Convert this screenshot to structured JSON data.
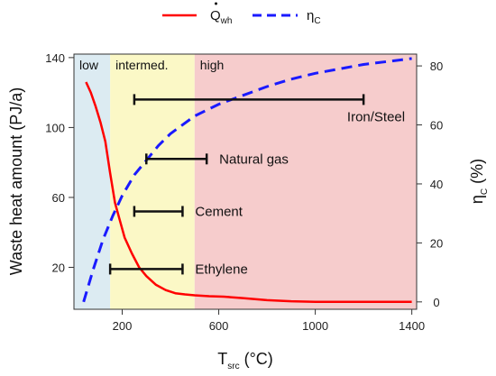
{
  "chart_data": {
    "type": "line",
    "legend": {
      "placement": "top",
      "entries": [
        {
          "main": "Q",
          "sub": "wh",
          "style": "solid",
          "color": "#ff0000"
        },
        {
          "main": "η",
          "sub": "C",
          "style": "dashed",
          "color": "#1a1aff"
        }
      ]
    },
    "x_axis": {
      "title_main": "T",
      "title_sub": "src",
      "title_rest": " (°C)",
      "ticks": [
        200,
        600,
        1000,
        1400
      ],
      "tick_labels": [
        "200",
        "600",
        "1000",
        "1400"
      ],
      "range": [
        0,
        1420
      ]
    },
    "y_left": {
      "title": "Waste heat amount (PJ/a)",
      "ticks": [
        20,
        60,
        100,
        140
      ],
      "tick_labels": [
        "20",
        "60",
        "100",
        "140"
      ],
      "range": [
        -4,
        142
      ]
    },
    "y_right": {
      "title_main": "η",
      "title_sub": "C",
      "title_rest": " (%)",
      "ticks": [
        0,
        20,
        40,
        60,
        80
      ],
      "tick_labels": [
        "0",
        "20",
        "40",
        "60",
        "80"
      ],
      "range": [
        -2.5,
        84
      ]
    },
    "regions": [
      {
        "label": "low",
        "from": 0,
        "to": 150,
        "color": "#dcebf2"
      },
      {
        "label": "intermed.",
        "from": 150,
        "to": 500,
        "color": "#fbf8c6"
      },
      {
        "label": "high",
        "from": 500,
        "to": 1420,
        "color": "#f6cccc"
      }
    ],
    "series": [
      {
        "name": "Qwh",
        "axis": "left",
        "color": "#ff0000",
        "dash": "solid",
        "x": [
          50,
          70,
          90,
          110,
          130,
          150,
          170,
          190,
          210,
          240,
          270,
          300,
          340,
          380,
          420,
          460,
          500,
          560,
          620,
          700,
          800,
          900,
          1000,
          1100,
          1200,
          1300,
          1400
        ],
        "y": [
          126,
          120,
          112,
          103,
          92,
          74,
          57,
          47,
          37,
          28,
          20,
          15,
          10,
          7,
          5.2,
          4.5,
          4,
          3.5,
          3.2,
          2.4,
          1.2,
          0.6,
          0.3,
          0.3,
          0.3,
          0.3,
          0.3
        ]
      },
      {
        "name": "ηC",
        "axis": "right",
        "color": "#1a1aff",
        "dash": "dashed",
        "x": [
          40,
          80,
          120,
          160,
          200,
          250,
          300,
          350,
          400,
          500,
          600,
          700,
          800,
          900,
          1000,
          1100,
          1200,
          1300,
          1400
        ],
        "y": [
          0,
          11,
          21,
          29,
          36,
          43,
          48,
          53,
          57,
          63,
          67,
          70,
          73,
          75.5,
          77.5,
          79,
          80.5,
          81.5,
          82.5
        ]
      }
    ],
    "ranges": [
      {
        "label": "Iron/Steel",
        "from": 250,
        "to": 1200,
        "y": 116
      },
      {
        "label": "Natural gas",
        "from": 300,
        "to": 550,
        "y": 82
      },
      {
        "label": "Cement",
        "from": 250,
        "to": 450,
        "y": 52
      },
      {
        "label": "Ethylene",
        "from": 150,
        "to": 450,
        "y": 19
      }
    ]
  }
}
